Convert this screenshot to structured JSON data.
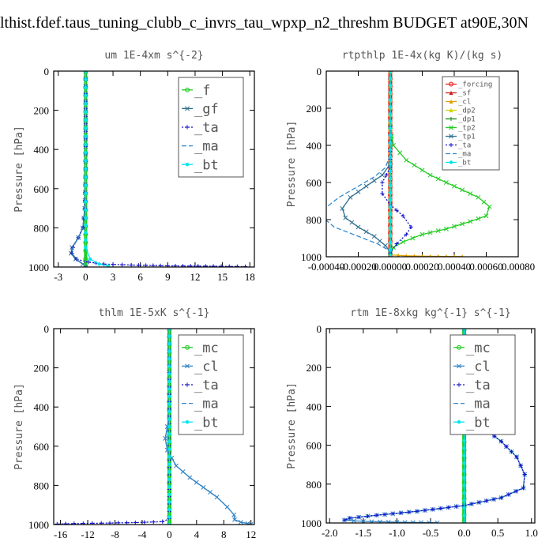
{
  "page": {
    "title": "lthist.fdef.taus_tuning_clubb_c_invrs_tau_wpxp_n2_threshm  BUDGET at90E,30N"
  },
  "chart_data": [
    {
      "type": "line",
      "title": "um  1E-4xm s^{-2}",
      "ylabel": "Pressure [hPa]",
      "ylim": [
        1000,
        0
      ],
      "xlim": [
        -3.5,
        18.5
      ],
      "xticks": [
        -3,
        0,
        3,
        6,
        9,
        12,
        15,
        18
      ],
      "xtick_labels": [
        "-3",
        "0",
        "3",
        "6",
        "9",
        "12",
        "15",
        "18"
      ],
      "yticks": [
        0,
        200,
        400,
        600,
        800,
        1000
      ],
      "legend_font": 17,
      "series": [
        {
          "name": "_f",
          "color": "#22cc22",
          "marker": "circle",
          "width": 4,
          "x": [
            0,
            0,
            0,
            0,
            0,
            0,
            0,
            0,
            0
          ],
          "y": [
            0,
            125,
            250,
            375,
            500,
            625,
            750,
            875,
            1000
          ]
        },
        {
          "name": "_gf",
          "color": "#2f6f8f",
          "marker": "x",
          "x": [
            0,
            0,
            -0.1,
            -0.3,
            -0.8,
            -1.5,
            -1.6,
            -1.1,
            -0.3,
            0
          ],
          "y": [
            0,
            500,
            700,
            800,
            850,
            900,
            930,
            960,
            985,
            1000
          ]
        },
        {
          "name": "_ta",
          "color": "#1010cc",
          "marker": "plus",
          "dash": "2,2",
          "x": [
            0,
            0,
            -0.1,
            -0.3,
            -0.8,
            -1.4,
            -1.5,
            -1.0,
            0.3,
            2,
            5,
            9,
            14,
            17.5
          ],
          "y": [
            0,
            500,
            700,
            800,
            850,
            900,
            930,
            960,
            975,
            985,
            990,
            994,
            996,
            998
          ]
        },
        {
          "name": "_ma",
          "color": "#3388cc",
          "marker": "none",
          "dash": "6,3",
          "x": [
            0,
            0,
            -0.1,
            -0.3,
            -0.8,
            -1.4,
            -1.5,
            -1.0,
            -0.3,
            0
          ],
          "y": [
            0,
            500,
            700,
            800,
            850,
            900,
            930,
            960,
            985,
            1000
          ]
        },
        {
          "name": "_bt",
          "color": "#00e5ee",
          "marker": "dot",
          "x": [
            0,
            0,
            0,
            0,
            0,
            0.5,
            1.5,
            2.5
          ],
          "y": [
            0,
            250,
            500,
            750,
            900,
            960,
            985,
            995
          ]
        }
      ]
    },
    {
      "type": "line",
      "title": "rtpthlp  1E-4x(kg K)/(kg s)",
      "ylabel": "Pressure [hPa]",
      "ylim": [
        1000,
        0
      ],
      "xlim": [
        -0.0004,
        0.0008
      ],
      "xticks": [
        -0.0004,
        -0.0002,
        0,
        0.0002,
        0.0004,
        0.0006,
        0.0008
      ],
      "xtick_labels": [
        "-0.00040",
        "-0.00020",
        "0.00000",
        "0.00020",
        "0.00040",
        "0.00060",
        "0.00080"
      ],
      "yticks": [
        0,
        200,
        400,
        600,
        800,
        1000
      ],
      "legend_font": 9,
      "series": [
        {
          "name": "_forcing",
          "color": "#ee2222",
          "marker": "circle",
          "width": 5,
          "x": [
            0,
            0,
            0,
            0,
            0,
            0,
            0,
            0,
            0
          ],
          "y": [
            0,
            125,
            250,
            375,
            500,
            625,
            750,
            875,
            1000
          ]
        },
        {
          "name": "_sf",
          "color": "#cc2222",
          "marker": "triangle",
          "x": [
            0,
            0,
            0,
            0,
            0
          ],
          "y": [
            0,
            250,
            500,
            750,
            1000
          ]
        },
        {
          "name": "_cl",
          "color": "#e0a000",
          "marker": "triangle",
          "x": [
            0,
            0,
            0.0001,
            0.0002,
            0.0003,
            0.00045
          ],
          "y": [
            0,
            990,
            995,
            997,
            998,
            999
          ]
        },
        {
          "name": "_dp2",
          "color": "#d4d400",
          "marker": "triangle",
          "x": [
            0,
            0
          ],
          "y": [
            0,
            1000
          ]
        },
        {
          "name": "_dp1",
          "color": "#118811",
          "marker": "plus",
          "x": [
            0,
            0
          ],
          "y": [
            0,
            1000
          ]
        },
        {
          "name": "_tp2",
          "color": "#22cc22",
          "marker": "x",
          "x": [
            0,
            2e-05,
            0.0001,
            0.00025,
            0.0004,
            0.00055,
            0.00062,
            0.0006,
            0.0005,
            0.00035,
            0.0002,
            8e-05,
            2e-05,
            0
          ],
          "y": [
            300,
            400,
            480,
            560,
            620,
            680,
            730,
            780,
            810,
            850,
            880,
            920,
            950,
            980
          ]
        },
        {
          "name": "_tp1",
          "color": "#2f6f8f",
          "marker": "x",
          "x": [
            0,
            -5e-05,
            -0.00015,
            -0.00025,
            -0.0003,
            -0.00028,
            -0.0002,
            -0.0001,
            -3e-05,
            0
          ],
          "y": [
            500,
            560,
            620,
            680,
            740,
            790,
            840,
            890,
            940,
            975
          ]
        },
        {
          "name": "_ta",
          "color": "#1010cc",
          "marker": "plus",
          "dash": "2,2",
          "x": [
            0,
            0,
            -5e-05,
            -5e-05,
            0,
            8e-05,
            0.00013,
            0.0001,
            4e-05,
            0
          ],
          "y": [
            300,
            520,
            600,
            660,
            720,
            780,
            840,
            880,
            930,
            980
          ]
        },
        {
          "name": "_ma",
          "color": "#3388cc",
          "marker": "none",
          "dash": "6,3",
          "x": [
            0,
            -3e-05,
            -0.0001,
            -0.0002,
            -0.00032,
            -0.00041,
            -0.00042,
            -0.00035,
            -0.0002,
            -8e-05,
            0
          ],
          "y": [
            450,
            520,
            570,
            620,
            680,
            740,
            790,
            840,
            890,
            930,
            970
          ]
        },
        {
          "name": "_bt",
          "color": "#00e5ee",
          "marker": "dot",
          "x": [
            0,
            0
          ],
          "y": [
            0,
            1000
          ]
        }
      ]
    },
    {
      "type": "line",
      "title": "thlm  1E-5xK s^{-1}",
      "ylabel": "Pressure [hPa]",
      "ylim": [
        1000,
        0
      ],
      "xlim": [
        -17,
        12.5
      ],
      "xticks": [
        -16,
        -12,
        -8,
        -4,
        0,
        4,
        8,
        12
      ],
      "xtick_labels": [
        "-16",
        "-12",
        "-8",
        "-4",
        "0",
        "4",
        "8",
        "12"
      ],
      "yticks": [
        0,
        200,
        400,
        600,
        800,
        1000
      ],
      "legend_font": 17,
      "series": [
        {
          "name": "_mc",
          "color": "#22cc22",
          "marker": "circle",
          "width": 5,
          "x": [
            0,
            0,
            0,
            0,
            0,
            0,
            0,
            0,
            0
          ],
          "y": [
            0,
            125,
            250,
            375,
            500,
            625,
            750,
            875,
            1000
          ]
        },
        {
          "name": "_cl",
          "color": "#2f80c0",
          "marker": "x",
          "x": [
            0,
            0,
            -0.3,
            -0.6,
            -0.3,
            1,
            3,
            5,
            7,
            8.5,
            9.5,
            9.6,
            10.5,
            11.5,
            12
          ],
          "y": [
            0,
            450,
            500,
            560,
            620,
            700,
            760,
            810,
            860,
            910,
            950,
            975,
            988,
            995,
            999
          ]
        },
        {
          "name": "_ta",
          "color": "#1010cc",
          "marker": "plus",
          "dash": "2,2",
          "x": [
            0,
            0,
            -1,
            -5,
            -10,
            -14,
            -16.5
          ],
          "y": [
            0,
            970,
            985,
            990,
            993,
            995,
            997
          ]
        },
        {
          "name": "_ma",
          "color": "#3388cc",
          "marker": "none",
          "dash": "6,3",
          "x": [
            0,
            0,
            -0.3,
            -0.6,
            -0.3,
            1,
            3,
            5,
            7,
            8.5,
            9.5,
            9.5,
            10.5,
            11.5
          ],
          "y": [
            0,
            450,
            500,
            560,
            620,
            700,
            760,
            810,
            860,
            910,
            950,
            975,
            988,
            995
          ]
        },
        {
          "name": "_bt",
          "color": "#00e5ee",
          "marker": "dot",
          "x": [
            0,
            0,
            0
          ],
          "y": [
            0,
            500,
            1000
          ]
        }
      ]
    },
    {
      "type": "line",
      "title": "rtm  1E-8xkg kg^{-1} s^{-1}",
      "ylabel": "Pressure [hPa]",
      "ylim": [
        1000,
        0
      ],
      "xlim": [
        -2.05,
        1.05
      ],
      "xticks": [
        -2.0,
        -1.5,
        -1.0,
        -0.5,
        0.0,
        0.5,
        1.0
      ],
      "xtick_labels": [
        "-2.0",
        "-1.5",
        "-1.0",
        "-0.5",
        "0.0",
        "0.5",
        "1.0"
      ],
      "yticks": [
        0,
        200,
        400,
        600,
        800,
        1000
      ],
      "legend_font": 17,
      "series": [
        {
          "name": "_mc",
          "color": "#22cc22",
          "marker": "circle",
          "width": 5,
          "x": [
            0,
            0,
            0,
            0,
            0,
            0,
            0,
            0,
            0
          ],
          "y": [
            0,
            125,
            250,
            375,
            500,
            625,
            750,
            875,
            1000
          ]
        },
        {
          "name": "_cl",
          "color": "#2f80c0",
          "marker": "x",
          "x": [
            0,
            0.02,
            0.06,
            0.03,
            0.05,
            0.25,
            0.55,
            0.78,
            0.9,
            0.88,
            0.55,
            0,
            -0.7,
            -1.3,
            -1.7,
            -1.78,
            -1.5,
            -1.0,
            -0.4
          ],
          "y": [
            0,
            200,
            280,
            360,
            430,
            500,
            580,
            660,
            750,
            820,
            870,
            910,
            940,
            960,
            975,
            985,
            992,
            996,
            999
          ]
        },
        {
          "name": "_ta",
          "color": "#1010cc",
          "marker": "plus",
          "dash": "2,2",
          "x": [
            0,
            0.02,
            0.06,
            0.03,
            0.05,
            0.25,
            0.55,
            0.78,
            0.9,
            0.88,
            0.55,
            0,
            -0.7,
            -1.3,
            -1.7,
            -1.78
          ],
          "y": [
            0,
            200,
            280,
            360,
            430,
            500,
            580,
            660,
            750,
            820,
            870,
            910,
            940,
            960,
            975,
            985
          ]
        },
        {
          "name": "_ma",
          "color": "#3388cc",
          "marker": "none",
          "dash": "6,3",
          "x": [
            0,
            0,
            0,
            0
          ],
          "y": [
            0,
            300,
            600,
            1000
          ]
        },
        {
          "name": "_bt",
          "color": "#00e5ee",
          "marker": "dot",
          "x": [
            0,
            0,
            0
          ],
          "y": [
            0,
            500,
            1000
          ]
        }
      ]
    }
  ]
}
